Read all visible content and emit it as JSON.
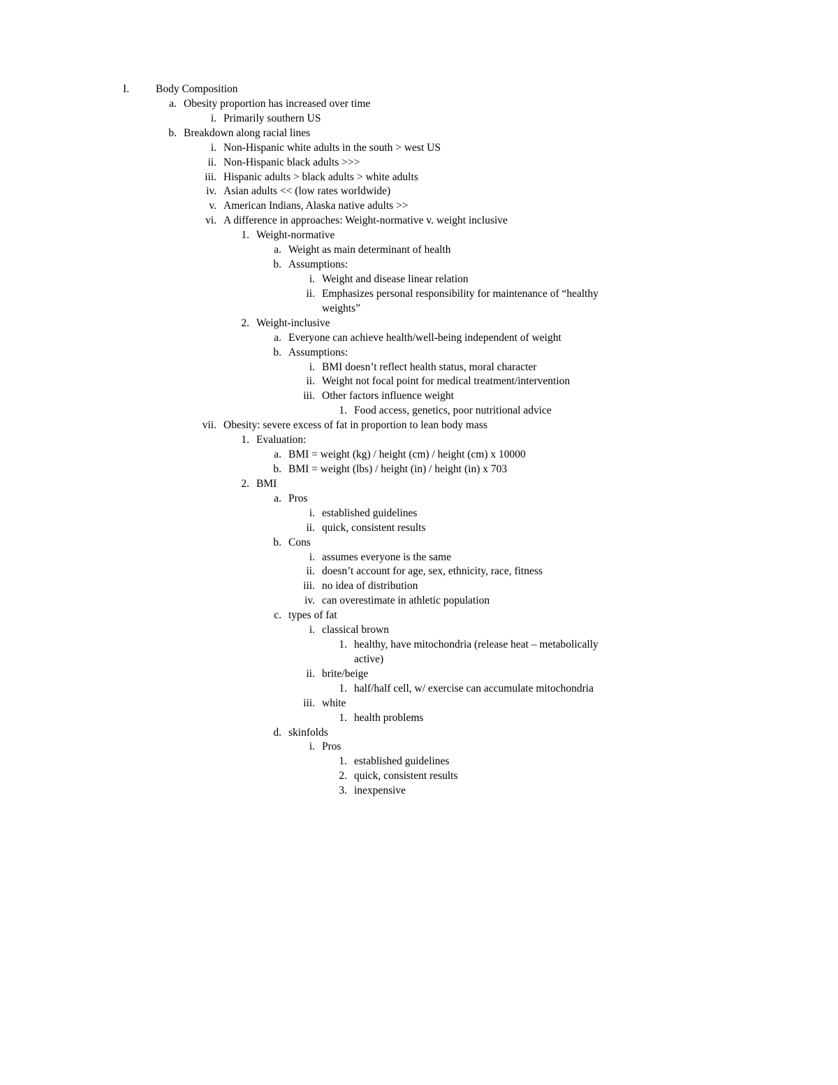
{
  "outline": [
    {
      "lvl": "I",
      "marker": "I.",
      "text": "Body Composition"
    },
    {
      "lvl": "a",
      "marker": "a.",
      "text": "Obesity proportion has increased over time"
    },
    {
      "lvl": "i1",
      "marker": "i.",
      "text": "Primarily southern US"
    },
    {
      "lvl": "a",
      "marker": "b.",
      "text": "Breakdown along racial lines"
    },
    {
      "lvl": "i1",
      "marker": "i.",
      "text": "Non-Hispanic white adults in the south > west US"
    },
    {
      "lvl": "i1",
      "marker": "ii.",
      "text": "Non-Hispanic black adults >>>"
    },
    {
      "lvl": "i1",
      "marker": "iii.",
      "text": "Hispanic adults > black adults > white adults"
    },
    {
      "lvl": "i1",
      "marker": "iv.",
      "text": "Asian adults << (low rates worldwide)"
    },
    {
      "lvl": "i1",
      "marker": "v.",
      "text": "American Indians, Alaska native adults >>"
    },
    {
      "lvl": "i1",
      "marker": "vi.",
      "text": "A difference in approaches: Weight-normative v. weight inclusive"
    },
    {
      "lvl": "n1",
      "marker": "1.",
      "text": "Weight-normative"
    },
    {
      "lvl": "a2",
      "marker": "a.",
      "text": "Weight as main determinant of health"
    },
    {
      "lvl": "a2",
      "marker": "b.",
      "text": "Assumptions:"
    },
    {
      "lvl": "i2",
      "marker": "i.",
      "text": "Weight and disease linear relation"
    },
    {
      "lvl": "i2",
      "marker": "ii.",
      "text": "Emphasizes personal responsibility for maintenance of “healthy weights”"
    },
    {
      "lvl": "n1",
      "marker": "2.",
      "text": "Weight-inclusive"
    },
    {
      "lvl": "a2",
      "marker": "a.",
      "text": "Everyone can achieve health/well-being independent of weight"
    },
    {
      "lvl": "a2",
      "marker": "b.",
      "text": "Assumptions:"
    },
    {
      "lvl": "i2",
      "marker": "i.",
      "text": "BMI doesn’t reflect health status, moral character"
    },
    {
      "lvl": "i2",
      "marker": "ii.",
      "text": "Weight not focal point for medical treatment/intervention"
    },
    {
      "lvl": "i2",
      "marker": "iii.",
      "text": "Other factors influence weight"
    },
    {
      "lvl": "n2",
      "marker": "1.",
      "text": "Food access, genetics, poor nutritional advice"
    },
    {
      "lvl": "i1",
      "marker": "vii.",
      "text": "Obesity: severe excess of fat in proportion to lean body mass"
    },
    {
      "lvl": "n1",
      "marker": "1.",
      "text": "Evaluation:"
    },
    {
      "lvl": "a2",
      "marker": "a.",
      "text": "BMI = weight (kg) / height (cm) / height (cm) x 10000"
    },
    {
      "lvl": "a2",
      "marker": "b.",
      "text": "BMI = weight (lbs) / height (in) / height (in) x 703"
    },
    {
      "lvl": "n1",
      "marker": "2.",
      "text": "BMI"
    },
    {
      "lvl": "a2",
      "marker": "a.",
      "text": "Pros"
    },
    {
      "lvl": "i2",
      "marker": "i.",
      "text": "established guidelines"
    },
    {
      "lvl": "i2",
      "marker": "ii.",
      "text": "quick, consistent results"
    },
    {
      "lvl": "a2",
      "marker": "b.",
      "text": "Cons"
    },
    {
      "lvl": "i2",
      "marker": "i.",
      "text": "assumes everyone is the same"
    },
    {
      "lvl": "i2",
      "marker": "ii.",
      "text": "doesn’t account for age, sex, ethnicity, race, fitness"
    },
    {
      "lvl": "i2",
      "marker": "iii.",
      "text": "no idea of distribution"
    },
    {
      "lvl": "i2",
      "marker": "iv.",
      "text": "can overestimate in athletic population"
    },
    {
      "lvl": "a2",
      "marker": "c.",
      "text": "types of fat"
    },
    {
      "lvl": "i2",
      "marker": "i.",
      "text": "classical brown"
    },
    {
      "lvl": "n2",
      "marker": "1.",
      "text": "healthy, have mitochondria (release heat – metabolically active)"
    },
    {
      "lvl": "i2",
      "marker": "ii.",
      "text": "brite/beige"
    },
    {
      "lvl": "n2",
      "marker": "1.",
      "text": "half/half cell, w/ exercise can accumulate mitochondria"
    },
    {
      "lvl": "i2",
      "marker": "iii.",
      "text": "white"
    },
    {
      "lvl": "n2",
      "marker": "1.",
      "text": "health problems"
    },
    {
      "lvl": "a2",
      "marker": "d.",
      "text": "skinfolds"
    },
    {
      "lvl": "i2",
      "marker": "i.",
      "text": "Pros"
    },
    {
      "lvl": "n2",
      "marker": "1.",
      "text": "established guidelines"
    },
    {
      "lvl": "n2",
      "marker": "2.",
      "text": "quick, consistent results"
    },
    {
      "lvl": "n2",
      "marker": "3.",
      "text": "inexpensive"
    }
  ],
  "text_wrap_widths": {
    "i2": 400,
    "n2": 360
  }
}
